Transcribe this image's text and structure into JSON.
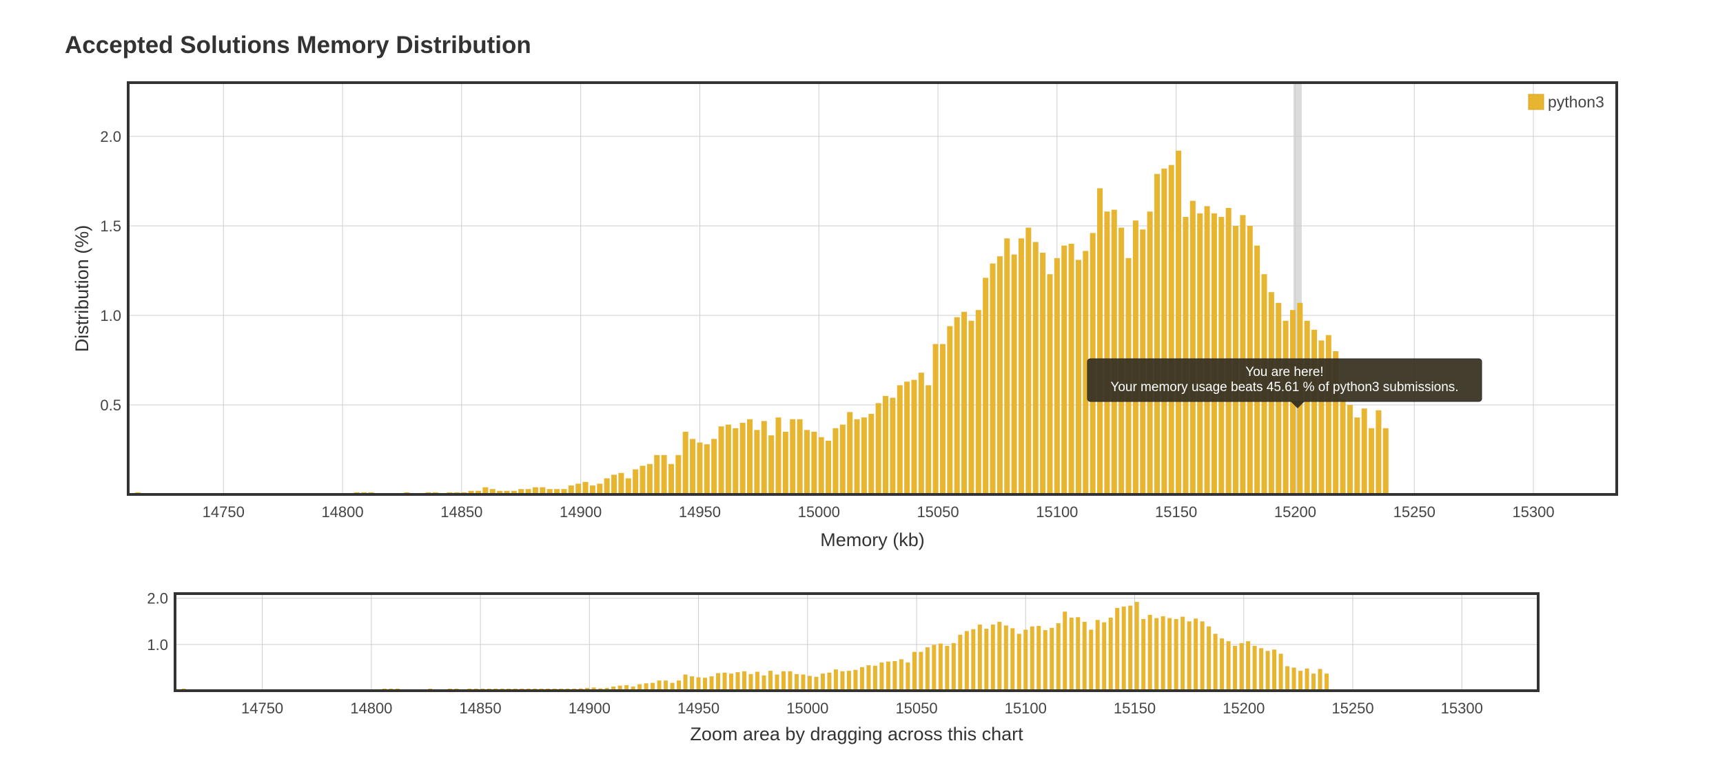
{
  "page": {
    "title": "Accepted Solutions Memory Distribution"
  },
  "colors": {
    "bar": "#e8b530",
    "bar_stroke": "#d9a522",
    "grid": "#cccccc",
    "frame": "#333333",
    "tooltip_bg": "#3a3424",
    "highlight": "#cfcfcf"
  },
  "chart_data": [
    {
      "id": "main",
      "type": "bar",
      "title": "Accepted Solutions Memory Distribution",
      "xlabel": "Memory (kb)",
      "ylabel": "Distribution (%)",
      "xlim": [
        14710,
        15335
      ],
      "ylim": [
        0,
        2.3
      ],
      "xticks": [
        14750,
        14800,
        14850,
        14900,
        14950,
        15000,
        15050,
        15100,
        15150,
        15200,
        15250,
        15300
      ],
      "yticks": [
        0.5,
        1.0,
        1.5,
        2.0
      ],
      "ytick_labels": [
        "0.5",
        "1.0",
        "1.5",
        "2.0"
      ],
      "grid": true,
      "legend": {
        "position": "top-right",
        "label": "python3"
      },
      "series": [
        {
          "name": "python3",
          "points": [
            [
              14714,
              0.01
            ],
            [
              14806,
              0.01
            ],
            [
              14809,
              0.01
            ],
            [
              14812,
              0.01
            ],
            [
              14827,
              0.01
            ],
            [
              14836,
              0.01
            ],
            [
              14839,
              0.01
            ],
            [
              14845,
              0.01
            ],
            [
              14848,
              0.01
            ],
            [
              14851,
              0.01
            ],
            [
              14854,
              0.02
            ],
            [
              14857,
              0.02
            ],
            [
              14860,
              0.04
            ],
            [
              14863,
              0.03
            ],
            [
              14866,
              0.02
            ],
            [
              14869,
              0.02
            ],
            [
              14872,
              0.02
            ],
            [
              14875,
              0.03
            ],
            [
              14878,
              0.03
            ],
            [
              14881,
              0.04
            ],
            [
              14884,
              0.04
            ],
            [
              14887,
              0.03
            ],
            [
              14890,
              0.03
            ],
            [
              14893,
              0.03
            ],
            [
              14896,
              0.05
            ],
            [
              14899,
              0.06
            ],
            [
              14902,
              0.07
            ],
            [
              14905,
              0.05
            ],
            [
              14908,
              0.06
            ],
            [
              14911,
              0.09
            ],
            [
              14914,
              0.11
            ],
            [
              14917,
              0.12
            ],
            [
              14920,
              0.09
            ],
            [
              14923,
              0.14
            ],
            [
              14926,
              0.16
            ],
            [
              14929,
              0.17
            ],
            [
              14932,
              0.22
            ],
            [
              14935,
              0.22
            ],
            [
              14938,
              0.17
            ],
            [
              14941,
              0.22
            ],
            [
              14944,
              0.35
            ],
            [
              14947,
              0.31
            ],
            [
              14950,
              0.29
            ],
            [
              14953,
              0.28
            ],
            [
              14956,
              0.31
            ],
            [
              14959,
              0.38
            ],
            [
              14962,
              0.39
            ],
            [
              14965,
              0.37
            ],
            [
              14968,
              0.4
            ],
            [
              14971,
              0.42
            ],
            [
              14974,
              0.36
            ],
            [
              14977,
              0.41
            ],
            [
              14980,
              0.33
            ],
            [
              14983,
              0.43
            ],
            [
              14986,
              0.35
            ],
            [
              14989,
              0.42
            ],
            [
              14992,
              0.42
            ],
            [
              14995,
              0.36
            ],
            [
              14998,
              0.35
            ],
            [
              15001,
              0.32
            ],
            [
              15004,
              0.3
            ],
            [
              15007,
              0.37
            ],
            [
              15010,
              0.39
            ],
            [
              15013,
              0.46
            ],
            [
              15016,
              0.42
            ],
            [
              15019,
              0.43
            ],
            [
              15022,
              0.45
            ],
            [
              15025,
              0.51
            ],
            [
              15028,
              0.55
            ],
            [
              15031,
              0.54
            ],
            [
              15034,
              0.61
            ],
            [
              15037,
              0.63
            ],
            [
              15040,
              0.64
            ],
            [
              15043,
              0.68
            ],
            [
              15046,
              0.61
            ],
            [
              15049,
              0.84
            ],
            [
              15052,
              0.84
            ],
            [
              15055,
              0.94
            ],
            [
              15058,
              0.99
            ],
            [
              15061,
              1.02
            ],
            [
              15064,
              0.97
            ],
            [
              15067,
              1.03
            ],
            [
              15070,
              1.21
            ],
            [
              15073,
              1.29
            ],
            [
              15076,
              1.33
            ],
            [
              15079,
              1.43
            ],
            [
              15082,
              1.34
            ],
            [
              15085,
              1.43
            ],
            [
              15088,
              1.49
            ],
            [
              15091,
              1.41
            ],
            [
              15094,
              1.35
            ],
            [
              15097,
              1.23
            ],
            [
              15100,
              1.32
            ],
            [
              15103,
              1.39
            ],
            [
              15106,
              1.4
            ],
            [
              15109,
              1.31
            ],
            [
              15112,
              1.36
            ],
            [
              15115,
              1.46
            ],
            [
              15118,
              1.71
            ],
            [
              15121,
              1.58
            ],
            [
              15124,
              1.59
            ],
            [
              15127,
              1.49
            ],
            [
              15130,
              1.32
            ],
            [
              15133,
              1.53
            ],
            [
              15136,
              1.48
            ],
            [
              15139,
              1.58
            ],
            [
              15142,
              1.79
            ],
            [
              15145,
              1.82
            ],
            [
              15148,
              1.84
            ],
            [
              15151,
              1.92
            ],
            [
              15154,
              1.55
            ],
            [
              15157,
              1.64
            ],
            [
              15160,
              1.57
            ],
            [
              15163,
              1.61
            ],
            [
              15166,
              1.57
            ],
            [
              15169,
              1.55
            ],
            [
              15172,
              1.6
            ],
            [
              15175,
              1.5
            ],
            [
              15178,
              1.56
            ],
            [
              15181,
              1.5
            ],
            [
              15184,
              1.39
            ],
            [
              15187,
              1.23
            ],
            [
              15190,
              1.13
            ],
            [
              15193,
              1.07
            ],
            [
              15196,
              0.97
            ],
            [
              15199,
              1.03
            ],
            [
              15202,
              1.07
            ],
            [
              15205,
              0.97
            ],
            [
              15208,
              0.92
            ],
            [
              15211,
              0.86
            ],
            [
              15214,
              0.89
            ],
            [
              15217,
              0.8
            ],
            [
              15220,
              0.53
            ],
            [
              15223,
              0.5
            ],
            [
              15226,
              0.43
            ],
            [
              15229,
              0.48
            ],
            [
              15232,
              0.37
            ],
            [
              15235,
              0.47
            ],
            [
              15238,
              0.37
            ]
          ]
        }
      ],
      "tooltip": {
        "x": 15201,
        "line1": "You are here!",
        "line2": "Your memory usage beats 45.61 % of python3 submissions."
      }
    },
    {
      "id": "navigator",
      "type": "bar",
      "xlabel": "Zoom area by dragging across this chart",
      "xlim": [
        14710,
        15335
      ],
      "ylim": [
        0,
        2.1
      ],
      "xticks": [
        14750,
        14800,
        14850,
        14900,
        14950,
        15000,
        15050,
        15100,
        15150,
        15200,
        15250,
        15300
      ],
      "yticks": [
        1.0,
        2.0
      ],
      "ytick_labels": [
        "1.0",
        "2.0"
      ],
      "grid": true
    }
  ]
}
